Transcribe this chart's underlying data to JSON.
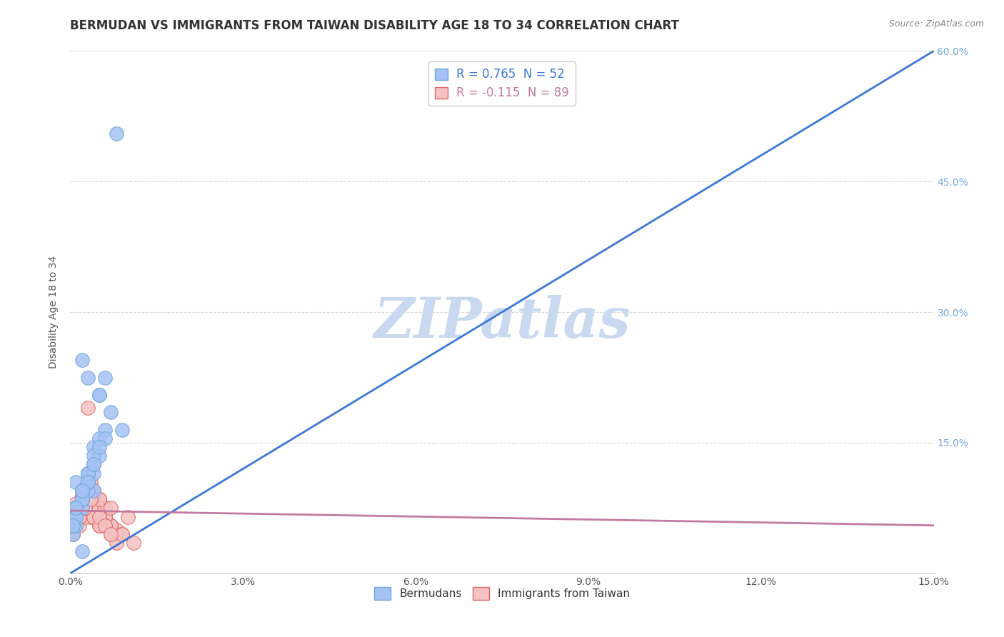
{
  "title": "BERMUDAN VS IMMIGRANTS FROM TAIWAN DISABILITY AGE 18 TO 34 CORRELATION CHART",
  "source_text": "Source: ZipAtlas.com",
  "ylabel": "Disability Age 18 to 34",
  "xlim": [
    0.0,
    0.15
  ],
  "ylim": [
    0.0,
    0.6
  ],
  "xticks": [
    0.0,
    0.03,
    0.06,
    0.09,
    0.12,
    0.15
  ],
  "xticklabels": [
    "0.0%",
    "3.0%",
    "6.0%",
    "9.0%",
    "12.0%",
    "15.0%"
  ],
  "yticks": [
    0.0,
    0.15,
    0.3,
    0.45,
    0.6
  ],
  "yticklabels_left": [
    "",
    "",
    "",
    "",
    ""
  ],
  "yticklabels_right": [
    "",
    "15.0%",
    "30.0%",
    "45.0%",
    "60.0%"
  ],
  "blue_color": "#a4c2f4",
  "blue_edge_color": "#6fa8dc",
  "pink_color": "#f4c2c2",
  "pink_edge_color": "#e06666",
  "blue_line_color": "#3c78d8",
  "pink_line_color": "#c27ba0",
  "right_tick_color": "#6fa8dc",
  "legend_R_blue": "R = 0.765",
  "legend_N_blue": "N = 52",
  "legend_R_pink": "R = -0.115",
  "legend_N_pink": "N = 89",
  "legend_text_blue": "R = 0.765  N = 52",
  "legend_text_pink": "R = -0.115  N = 89",
  "watermark": "ZIPatlas",
  "watermark_color": "#c9d9f0",
  "title_fontsize": 12,
  "axis_fontsize": 10,
  "tick_fontsize": 10,
  "blue_scatter_x": [
    0.002,
    0.004,
    0.001,
    0.001,
    0.003,
    0.002,
    0.0005,
    0.002,
    0.003,
    0.004,
    0.005,
    0.003,
    0.002,
    0.001,
    0.004,
    0.006,
    0.008,
    0.005,
    0.003,
    0.002,
    0.001,
    0.002,
    0.003,
    0.004,
    0.005,
    0.0005,
    0.001,
    0.001,
    0.002,
    0.003,
    0.004,
    0.006,
    0.007,
    0.002,
    0.003,
    0.001,
    0.0005,
    0.001,
    0.002,
    0.003,
    0.005,
    0.001,
    0.002,
    0.003,
    0.0005,
    0.001,
    0.002,
    0.004,
    0.005,
    0.006,
    0.009,
    0.002
  ],
  "blue_scatter_y": [
    0.085,
    0.095,
    0.075,
    0.065,
    0.105,
    0.085,
    0.055,
    0.075,
    0.095,
    0.115,
    0.135,
    0.225,
    0.245,
    0.105,
    0.145,
    0.165,
    0.505,
    0.155,
    0.115,
    0.095,
    0.075,
    0.085,
    0.105,
    0.125,
    0.205,
    0.045,
    0.055,
    0.075,
    0.095,
    0.115,
    0.135,
    0.155,
    0.185,
    0.085,
    0.105,
    0.065,
    0.055,
    0.075,
    0.095,
    0.115,
    0.205,
    0.065,
    0.085,
    0.105,
    0.055,
    0.075,
    0.095,
    0.125,
    0.145,
    0.225,
    0.165,
    0.025
  ],
  "pink_scatter_x": [
    0.0005,
    0.001,
    0.0015,
    0.002,
    0.0025,
    0.003,
    0.0035,
    0.004,
    0.0045,
    0.005,
    0.006,
    0.007,
    0.008,
    0.009,
    0.01,
    0.0015,
    0.0025,
    0.0035,
    0.005,
    0.006,
    0.001,
    0.002,
    0.003,
    0.004,
    0.005,
    0.006,
    0.0005,
    0.0015,
    0.0025,
    0.0035,
    0.004,
    0.006,
    0.007,
    0.008,
    0.001,
    0.002,
    0.003,
    0.004,
    0.005,
    0.006,
    0.007,
    0.0005,
    0.0015,
    0.0025,
    0.0035,
    0.005,
    0.006,
    0.001,
    0.002,
    0.003,
    0.004,
    0.005,
    0.006,
    0.0005,
    0.0015,
    0.0025,
    0.0035,
    0.005,
    0.006,
    0.007,
    0.001,
    0.002,
    0.003,
    0.004,
    0.005,
    0.006,
    0.007,
    0.0005,
    0.0015,
    0.0025,
    0.0035,
    0.005,
    0.006,
    0.007,
    0.008,
    0.001,
    0.002,
    0.003,
    0.004,
    0.005,
    0.009,
    0.011,
    0.0005,
    0.0015,
    0.0025,
    0.0035,
    0.005,
    0.006,
    0.007
  ],
  "pink_scatter_y": [
    0.045,
    0.055,
    0.065,
    0.075,
    0.085,
    0.095,
    0.105,
    0.08,
    0.07,
    0.065,
    0.06,
    0.055,
    0.05,
    0.045,
    0.065,
    0.075,
    0.095,
    0.105,
    0.085,
    0.075,
    0.065,
    0.085,
    0.075,
    0.095,
    0.085,
    0.065,
    0.055,
    0.065,
    0.075,
    0.085,
    0.065,
    0.075,
    0.055,
    0.045,
    0.08,
    0.09,
    0.105,
    0.085,
    0.075,
    0.065,
    0.055,
    0.065,
    0.075,
    0.085,
    0.065,
    0.055,
    0.065,
    0.075,
    0.085,
    0.19,
    0.075,
    0.065,
    0.055,
    0.045,
    0.055,
    0.065,
    0.075,
    0.085,
    0.065,
    0.055,
    0.065,
    0.075,
    0.085,
    0.065,
    0.055,
    0.065,
    0.075,
    0.055,
    0.065,
    0.075,
    0.085,
    0.065,
    0.055,
    0.045,
    0.035,
    0.065,
    0.075,
    0.085,
    0.065,
    0.055,
    0.045,
    0.035,
    0.055,
    0.065,
    0.075,
    0.085,
    0.065,
    0.055,
    0.045
  ],
  "blue_trend_x": [
    0.0,
    0.15
  ],
  "blue_trend_y": [
    0.0,
    0.6
  ],
  "pink_trend_x": [
    0.0,
    0.15
  ],
  "pink_trend_y": [
    0.072,
    0.055
  ]
}
